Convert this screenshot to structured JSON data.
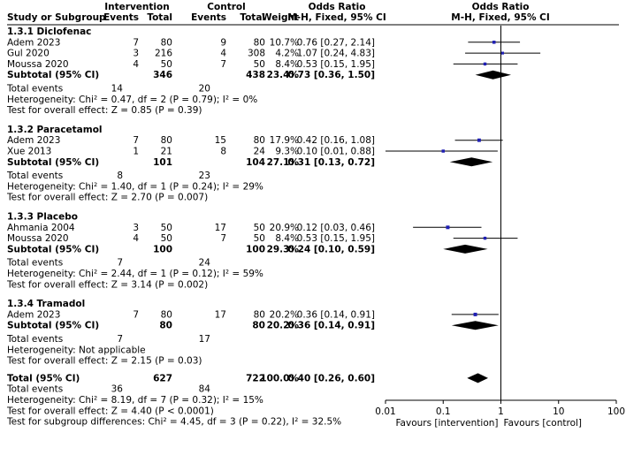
{
  "header": {
    "study": "Study or Subgroup",
    "intervention": "Intervention",
    "control": "Control",
    "events": "Events",
    "total": "Total",
    "weight": "Weight",
    "or_title": "Odds Ratio",
    "or_method": "M-H, Fixed, 95% CI"
  },
  "colors": {
    "square": "#1f1fb4",
    "diamond": "#000000",
    "line": "#000000"
  },
  "chart_data": {
    "type": "forest",
    "scale": "log",
    "xlim": [
      0.01,
      100
    ],
    "ticks": [
      {
        "value": 0.01,
        "label": "0.01"
      },
      {
        "value": 0.1,
        "label": "0.1"
      },
      {
        "value": 1,
        "label": "1"
      },
      {
        "value": 10,
        "label": "10"
      },
      {
        "value": 100,
        "label": "100"
      }
    ],
    "axis_left_label": "Favours [intervention]",
    "axis_right_label": "Favours [control]",
    "subgroups": [
      {
        "title": "1.3.1 Diclofenac",
        "studies": [
          {
            "name": "Adem 2023",
            "ie": "7",
            "it": "80",
            "ce": "9",
            "ct": "80",
            "w": "10.7%",
            "ci": "0.76 [0.27, 2.14]",
            "or": 0.76,
            "lo": 0.27,
            "hi": 2.14
          },
          {
            "name": "Gul 2020",
            "ie": "3",
            "it": "216",
            "ce": "4",
            "ct": "308",
            "w": "4.2%",
            "ci": "1.07 [0.24, 4.83]",
            "or": 1.07,
            "lo": 0.24,
            "hi": 4.83
          },
          {
            "name": "Moussa 2020",
            "ie": "4",
            "it": "50",
            "ce": "7",
            "ct": "50",
            "w": "8.4%",
            "ci": "0.53 [0.15, 1.95]",
            "or": 0.53,
            "lo": 0.15,
            "hi": 1.95
          }
        ],
        "subtotal": {
          "label": "Subtotal (95% CI)",
          "it": "346",
          "ct": "438",
          "w": "23.4%",
          "ci": "0.73 [0.36, 1.50]",
          "or": 0.73,
          "lo": 0.36,
          "hi": 1.5
        },
        "total_events": {
          "label": "Total events",
          "ie": "14",
          "ce": "20"
        },
        "heterogeneity": "Heterogeneity: Chi² = 0.47, df = 2 (P = 0.79); I² = 0%",
        "overall": "Test for overall effect: Z = 0.85 (P = 0.39)"
      },
      {
        "title": "1.3.2 Paracetamol",
        "studies": [
          {
            "name": "Adem 2023",
            "ie": "7",
            "it": "80",
            "ce": "15",
            "ct": "80",
            "w": "17.9%",
            "ci": "0.42 [0.16, 1.08]",
            "or": 0.42,
            "lo": 0.16,
            "hi": 1.08
          },
          {
            "name": "Xue 2013",
            "ie": "1",
            "it": "21",
            "ce": "8",
            "ct": "24",
            "w": "9.3%",
            "ci": "0.10 [0.01, 0.88]",
            "or": 0.1,
            "lo": 0.01,
            "hi": 0.88
          }
        ],
        "subtotal": {
          "label": "Subtotal (95% CI)",
          "it": "101",
          "ct": "104",
          "w": "27.1%",
          "ci": "0.31 [0.13, 0.72]",
          "or": 0.31,
          "lo": 0.13,
          "hi": 0.72
        },
        "total_events": {
          "label": "Total events",
          "ie": "8",
          "ce": "23"
        },
        "heterogeneity": "Heterogeneity: Chi² = 1.40, df = 1 (P = 0.24); I² = 29%",
        "overall": "Test for overall effect: Z = 2.70 (P = 0.007)"
      },
      {
        "title": "1.3.3 Placebo",
        "studies": [
          {
            "name": "Ahmania 2004",
            "ie": "3",
            "it": "50",
            "ce": "17",
            "ct": "50",
            "w": "20.9%",
            "ci": "0.12 [0.03, 0.46]",
            "or": 0.12,
            "lo": 0.03,
            "hi": 0.46
          },
          {
            "name": "Moussa 2020",
            "ie": "4",
            "it": "50",
            "ce": "7",
            "ct": "50",
            "w": "8.4%",
            "ci": "0.53 [0.15, 1.95]",
            "or": 0.53,
            "lo": 0.15,
            "hi": 1.95
          }
        ],
        "subtotal": {
          "label": "Subtotal (95% CI)",
          "it": "100",
          "ct": "100",
          "w": "29.3%",
          "ci": "0.24 [0.10, 0.59]",
          "or": 0.24,
          "lo": 0.1,
          "hi": 0.59
        },
        "total_events": {
          "label": "Total events",
          "ie": "7",
          "ce": "24"
        },
        "heterogeneity": "Heterogeneity: Chi² = 2.44, df = 1 (P = 0.12); I² = 59%",
        "overall": "Test for overall effect: Z = 3.14 (P = 0.002)"
      },
      {
        "title": "1.3.4 Tramadol",
        "studies": [
          {
            "name": "Adem 2023",
            "ie": "7",
            "it": "80",
            "ce": "17",
            "ct": "80",
            "w": "20.2%",
            "ci": "0.36 [0.14, 0.91]",
            "or": 0.36,
            "lo": 0.14,
            "hi": 0.91
          }
        ],
        "subtotal": {
          "label": "Subtotal (95% CI)",
          "it": "80",
          "ct": "80",
          "w": "20.2%",
          "ci": "0.36 [0.14, 0.91]",
          "or": 0.36,
          "lo": 0.14,
          "hi": 0.91
        },
        "total_events": {
          "label": "Total events",
          "ie": "7",
          "ce": "17"
        },
        "heterogeneity": "Heterogeneity: Not applicable",
        "overall": "Test for overall effect: Z = 2.15 (P = 0.03)"
      }
    ],
    "total": {
      "label": "Total (95% CI)",
      "it": "627",
      "ct": "722",
      "w": "100.0%",
      "ci": "0.40 [0.26, 0.60]",
      "or": 0.4,
      "lo": 0.26,
      "hi": 0.6
    },
    "total_events": {
      "label": "Total events",
      "ie": "36",
      "ce": "84"
    },
    "heterogeneity": "Heterogeneity: Chi² = 8.19, df = 7 (P = 0.32); I² = 15%",
    "overall": "Test for overall effect: Z = 4.40 (P < 0.0001)",
    "subgroup_diff": "Test for subgroup differences: Chi² = 4.45, df = 3 (P = 0.22), I² = 32.5%"
  }
}
